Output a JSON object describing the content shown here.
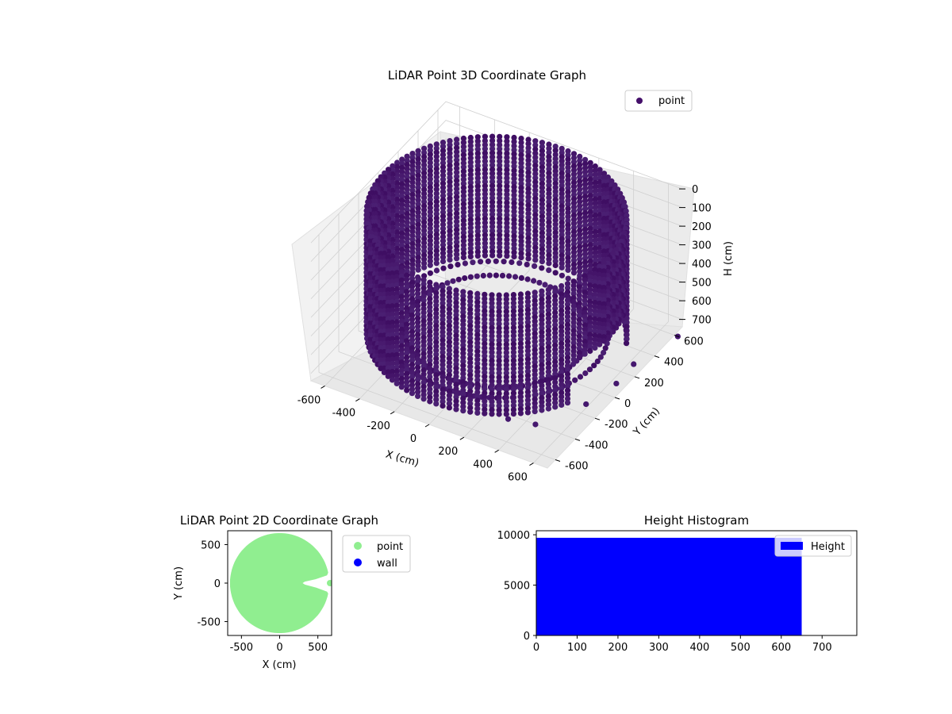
{
  "figure": {
    "background": "#ffffff"
  },
  "chart_data": [
    {
      "id": "lidar-3d",
      "type": "scatter",
      "title": "LiDAR Point 3D Coordinate Graph",
      "xlabel": "X (cm)",
      "ylabel": "Y (cm)",
      "zlabel": "H (cm)",
      "xticks": [
        "-600",
        "-400",
        "-200",
        "0",
        "200",
        "400",
        "600"
      ],
      "yticks": [
        "-600",
        "-400",
        "-200",
        "0",
        "200",
        "400",
        "600"
      ],
      "zticks": [
        "0",
        "100",
        "200",
        "300",
        "400",
        "500",
        "600",
        "700"
      ],
      "xlim": [
        -680,
        680
      ],
      "ylim": [
        -680,
        680
      ],
      "zlim": [
        0,
        740
      ],
      "z_inverted": true,
      "grid": true,
      "legend": {
        "position": "top-right",
        "entries": [
          {
            "label": "point",
            "color": "#440f6a"
          }
        ]
      },
      "point_color": "#45186e",
      "scene": {
        "description_values": "cylindrical wall of points, radius about 650 cm, heights 0 to 640 cm, centred near x=0,y=0, with a gap toward +x",
        "wall_radius": 650,
        "height_min": 0,
        "height_max": 640,
        "gap_angle_deg": [
          -25,
          25
        ]
      },
      "outliers": [
        {
          "x": 660,
          "y": 50,
          "h": 700
        },
        {
          "x": 600,
          "y": -150,
          "h": 720
        },
        {
          "x": 640,
          "y": 260,
          "h": 720
        },
        {
          "x": 700,
          "y": 600,
          "h": 740
        },
        {
          "x": 420,
          "y": -620,
          "h": 600
        },
        {
          "x": 520,
          "y": -520,
          "h": 650
        }
      ]
    },
    {
      "id": "lidar-2d",
      "type": "scatter",
      "title": "LiDAR Point 2D Coordinate Graph",
      "xlabel": "X (cm)",
      "ylabel": "Y (cm)",
      "xticks": [
        "-500",
        "0",
        "500"
      ],
      "yticks": [
        "-500",
        "0",
        "500"
      ],
      "xlim": [
        -680,
        680
      ],
      "ylim": [
        -680,
        680
      ],
      "grid": false,
      "legend": {
        "position": "right-outside",
        "entries": [
          {
            "label": "point",
            "color": "#90ee90"
          },
          {
            "label": "wall",
            "color": "#0000ff"
          }
        ]
      },
      "disc": {
        "center": [
          0,
          0
        ],
        "radius": 650
      }
    },
    {
      "id": "height-hist",
      "type": "bar",
      "title": "Height Histogram",
      "xticks": [
        "0",
        "100",
        "200",
        "300",
        "400",
        "500",
        "600",
        "700"
      ],
      "yticks": [
        "0",
        "5000",
        "10000"
      ],
      "xlim": [
        0,
        785
      ],
      "ylim": [
        0,
        10000
      ],
      "legend": {
        "position": "top-right",
        "entries": [
          {
            "label": "Height",
            "color": "#0000ff"
          }
        ]
      },
      "bins": [
        {
          "x0": 0,
          "x1": 650,
          "count": 9700
        }
      ],
      "bar_color": "#0000ff"
    }
  ]
}
